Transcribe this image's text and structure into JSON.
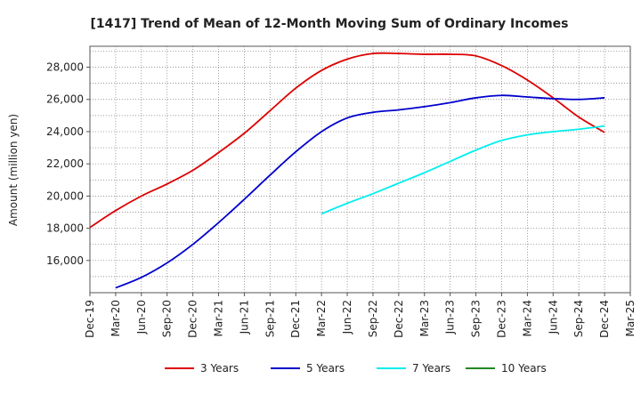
{
  "chart_data": {
    "type": "line",
    "title": "[1417]  Trend of Mean of 12-Month Moving Sum of Ordinary Incomes",
    "ylabel": "Amount (million yen)",
    "xlabel": "",
    "x_ticks": [
      "Dec-19",
      "Mar-20",
      "Jun-20",
      "Sep-20",
      "Dec-20",
      "Mar-21",
      "Jun-21",
      "Sep-21",
      "Dec-21",
      "Mar-22",
      "Jun-22",
      "Sep-22",
      "Dec-22",
      "Mar-23",
      "Jun-23",
      "Sep-23",
      "Dec-23",
      "Mar-24",
      "Jun-24",
      "Sep-24",
      "Dec-24",
      "Mar-25"
    ],
    "y_ticks": [
      "16,000",
      "18,000",
      "20,000",
      "22,000",
      "24,000",
      "26,000",
      "28,000"
    ],
    "ylim": [
      14000,
      29300
    ],
    "grid": true,
    "legend_position": "bottom",
    "series": [
      {
        "name": "3 Years",
        "color": "#dd0000",
        "x": [
          "Dec-19",
          "Mar-20",
          "Jun-20",
          "Sep-20",
          "Dec-20",
          "Mar-21",
          "Jun-21",
          "Sep-21",
          "Dec-21",
          "Mar-22",
          "Jun-22",
          "Sep-22",
          "Dec-22",
          "Mar-23",
          "Jun-23",
          "Sep-23",
          "Dec-23",
          "Mar-24",
          "Jun-24",
          "Sep-24",
          "Dec-24"
        ],
        "values": [
          18050,
          19100,
          20000,
          20750,
          21600,
          22700,
          23900,
          25300,
          26700,
          27800,
          28500,
          28850,
          28850,
          28800,
          28800,
          28700,
          28100,
          27200,
          26100,
          24900,
          23950
        ]
      },
      {
        "name": "5 Years",
        "color": "#0000cc",
        "x": [
          "Mar-20",
          "Jun-20",
          "Sep-20",
          "Dec-20",
          "Mar-21",
          "Jun-21",
          "Sep-21",
          "Dec-21",
          "Mar-22",
          "Jun-22",
          "Sep-22",
          "Dec-22",
          "Mar-23",
          "Jun-23",
          "Sep-23",
          "Dec-23",
          "Mar-24",
          "Jun-24",
          "Sep-24",
          "Dec-24"
        ],
        "values": [
          14300,
          14950,
          15850,
          17000,
          18350,
          19800,
          21300,
          22750,
          24000,
          24850,
          25200,
          25350,
          25550,
          25800,
          26100,
          26250,
          26150,
          26050,
          26000,
          26100
        ]
      },
      {
        "name": "7 Years",
        "color": "#00eeee",
        "x": [
          "Mar-22",
          "Jun-22",
          "Sep-22",
          "Dec-22",
          "Mar-23",
          "Jun-23",
          "Sep-23",
          "Dec-23",
          "Mar-24",
          "Jun-24",
          "Sep-24",
          "Dec-24"
        ],
        "values": [
          18900,
          19550,
          20150,
          20800,
          21450,
          22150,
          22850,
          23450,
          23800,
          24000,
          24150,
          24350
        ]
      },
      {
        "name": "10 Years",
        "color": "#228822",
        "x": [],
        "values": []
      }
    ]
  }
}
